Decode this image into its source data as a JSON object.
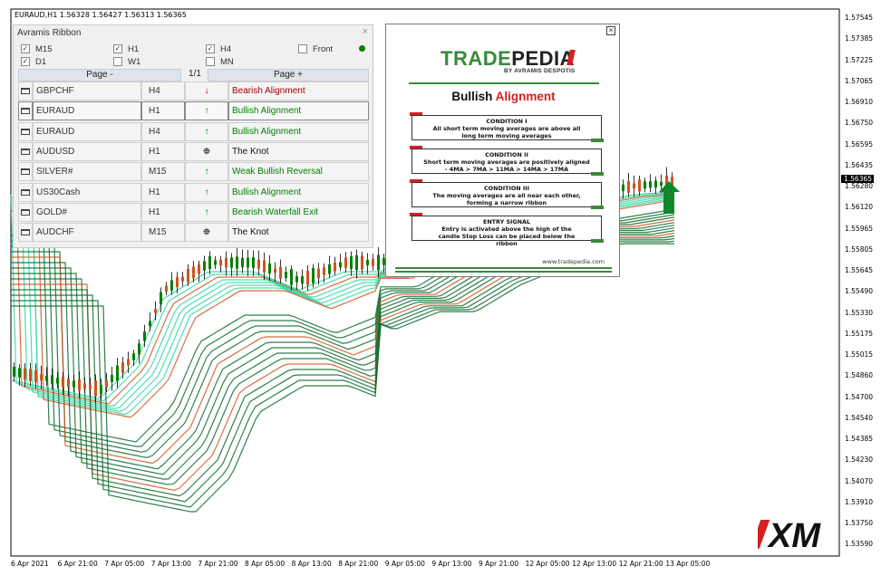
{
  "chart": {
    "symbol_header": "EURAUD,H1  1.56328 1.56427 1.56313 1.56365",
    "current_price": "1.56365",
    "price_axis": [
      "1.57545",
      "1.57385",
      "1.57225",
      "1.57065",
      "1.56910",
      "1.56750",
      "1.56595",
      "1.56435",
      "1.56280",
      "1.56120",
      "1.55965",
      "1.55805",
      "1.55645",
      "1.55490",
      "1.55330",
      "1.55175",
      "1.55015",
      "1.54860",
      "1.54700",
      "1.54540",
      "1.54385",
      "1.54230",
      "1.54070",
      "1.53910",
      "1.53750",
      "1.53590"
    ],
    "time_axis": [
      "6 Apr 2021",
      "6 Apr 21:00",
      "7 Apr 05:00",
      "7 Apr 13:00",
      "7 Apr 21:00",
      "8 Apr 05:00",
      "8 Apr 13:00",
      "8 Apr 21:00",
      "9 Apr 05:00",
      "9 Apr 13:00",
      "9 Apr 21:00",
      "12 Apr 05:00",
      "12 Apr 13:00",
      "12 Apr 21:00",
      "13 Apr 05:00"
    ],
    "colors": {
      "bull": "#008000",
      "bear": "#d2531f",
      "ribbon_light": "#2fd6a0",
      "ribbon_dark": "#0a6a2a"
    }
  },
  "panel": {
    "title": "Avramis Ribbon",
    "close_glyph": "×",
    "timeframes": [
      {
        "label": "M15",
        "checked": true
      },
      {
        "label": "H1",
        "checked": true
      },
      {
        "label": "H4",
        "checked": true
      },
      {
        "label": "Front",
        "checked": false
      },
      {
        "label": "D1",
        "checked": true
      },
      {
        "label": "W1",
        "checked": false
      },
      {
        "label": "MN",
        "checked": false
      }
    ],
    "status_color": "#008000",
    "page_prev": "Page -",
    "page_next": "Page +",
    "page_indicator": "1/1",
    "rows": [
      {
        "symbol": "GBPCHF",
        "tf": "H4",
        "dir": "↓",
        "dir_color": "#a00000",
        "signal": "Bearish Alignment",
        "signal_color": "#a00000",
        "icon": "folder-icon"
      },
      {
        "symbol": "EURAUD",
        "tf": "H1",
        "dir": "↑",
        "dir_color": "#008000",
        "signal": "Bullish Alignment",
        "signal_color": "#008000",
        "icon": "folder-open-icon"
      },
      {
        "symbol": "EURAUD",
        "tf": "H4",
        "dir": "↑",
        "dir_color": "#008000",
        "signal": "Bullish Alignment",
        "signal_color": "#008000",
        "icon": "folder-icon"
      },
      {
        "symbol": "AUDUSD",
        "tf": "H1",
        "dir": "⯐",
        "dir_color": "#222222",
        "signal": "The Knot",
        "signal_color": "#111111",
        "icon": "folder-icon"
      },
      {
        "symbol": "SILVER#",
        "tf": "M15",
        "dir": "↑",
        "dir_color": "#008000",
        "signal": "Weak Bullish Reversal",
        "signal_color": "#008000",
        "icon": "folder-icon"
      },
      {
        "symbol": "US30Cash",
        "tf": "H1",
        "dir": "↑",
        "dir_color": "#008000",
        "signal": "Bullish Alignment",
        "signal_color": "#008000",
        "icon": "folder-icon"
      },
      {
        "symbol": "GOLD#",
        "tf": "H1",
        "dir": "↑",
        "dir_color": "#008000",
        "signal": "Bearish Waterfall Exit",
        "signal_color": "#008000",
        "icon": "folder-icon"
      },
      {
        "symbol": "AUDCHF",
        "tf": "M15",
        "dir": "⯐",
        "dir_color": "#222222",
        "signal": "The Knot",
        "signal_color": "#111111",
        "icon": "folder-icon"
      }
    ]
  },
  "card": {
    "close_glyph": "×",
    "brand_trade": "TRADE",
    "brand_pedia": "PEDIA",
    "brand_sub": "BY AVRAMIS DESPOTIS",
    "heading_1": "Bullish",
    "heading_2": "Alignment",
    "conditions": [
      {
        "title": "CONDITION I",
        "text": "All short term moving averages are above all long term moving averages"
      },
      {
        "title": "CONDITION II",
        "text": "Short term moving averages are positively aligned - 4MA > 7MA > 11MA > 14MA > 17MA"
      },
      {
        "title": "CONDITION III",
        "text": "The moving averages are all near each other, forming a narrow ribbon"
      },
      {
        "title": "ENTRY SIGNAL",
        "text": "Entry is activated above the high of the candle Stop Loss can be placed below the ribbon"
      }
    ],
    "url": "www.tradepedia.com"
  },
  "logo": {
    "text": "XM",
    "accent": "#d32020"
  }
}
